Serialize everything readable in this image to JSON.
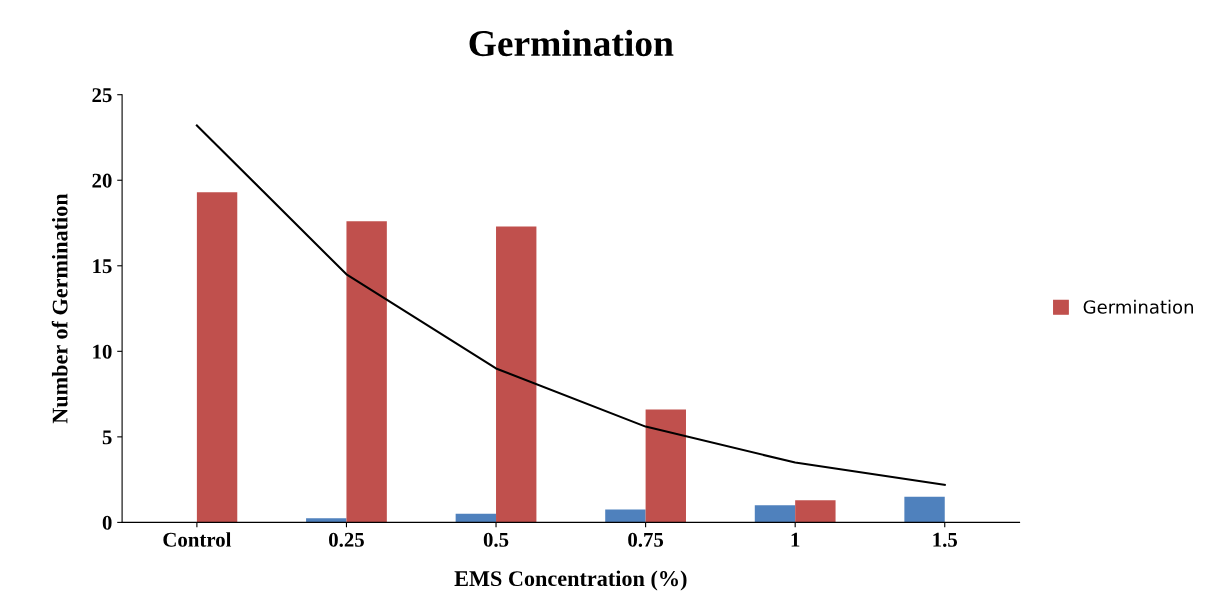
{
  "chart_data": {
    "type": "bar",
    "title": "Germination",
    "xlabel": "EMS Concentration (%)",
    "ylabel": "Number of Germination",
    "categories": [
      "Control",
      "0.25",
      "0.5",
      "0.75",
      "1",
      "1.5"
    ],
    "series": [
      {
        "color": "#4f81bd",
        "values": [
          0,
          0.25,
          0.5,
          0.75,
          1,
          1.5
        ]
      },
      {
        "name": "Germination",
        "color": "#c0504d",
        "values": [
          19.3,
          17.6,
          17.3,
          6.6,
          1.3,
          0
        ]
      },
      {
        "type": "line",
        "color": "#000000",
        "x": [
          "Control",
          "0.25",
          "0.5",
          "0.75",
          "1",
          "1.5"
        ],
        "values": [
          23.2,
          14.5,
          9.0,
          5.6,
          3.5,
          2.2
        ]
      }
    ],
    "ylim": [
      0,
      25
    ],
    "yticks": [
      0,
      5,
      10,
      15,
      20,
      25
    ],
    "grid": false,
    "legend": "right",
    "marker": "none",
    "line_style": "solid"
  }
}
